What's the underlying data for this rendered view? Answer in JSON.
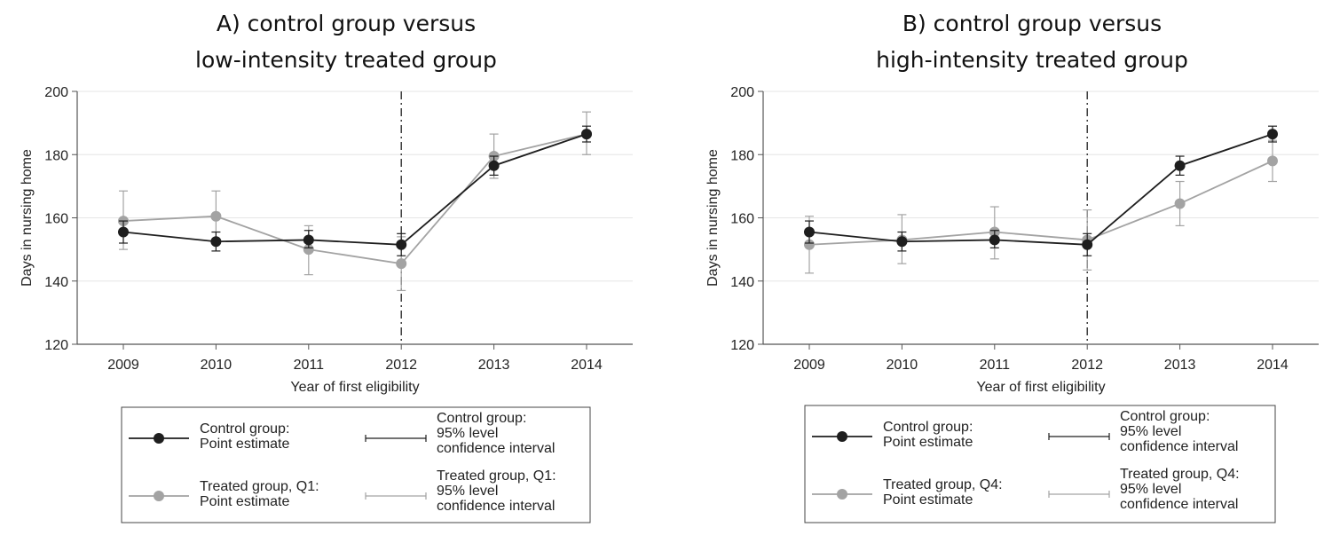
{
  "chart_data": [
    {
      "type": "line",
      "title_line1": "A) control group versus",
      "title_line2": "low-intensity treated group",
      "xlabel": "Year of first eligibility",
      "ylabel": "Days in nursing home",
      "categories": [
        "2009",
        "2010",
        "2011",
        "2012",
        "2013",
        "2014"
      ],
      "yticks": [
        "120",
        "140",
        "160",
        "180",
        "200"
      ],
      "ylim": [
        120,
        200
      ],
      "reference_line_at": "2012",
      "series": [
        {
          "name": "Control group",
          "color": "#1e1e1e",
          "values": [
            155.5,
            152.5,
            153.0,
            151.5,
            176.5,
            186.5
          ],
          "ci_low": [
            152.0,
            149.5,
            150.5,
            148.0,
            173.5,
            184.0
          ],
          "ci_high": [
            159.0,
            155.5,
            156.0,
            155.0,
            179.5,
            189.0
          ]
        },
        {
          "name": "Treated group, Q1",
          "color": "#a3a3a3",
          "values": [
            159.0,
            160.5,
            150.0,
            145.5,
            179.5,
            186.5
          ],
          "ci_low": [
            150.0,
            152.5,
            142.0,
            137.0,
            172.5,
            180.0
          ],
          "ci_high": [
            168.5,
            168.5,
            157.5,
            154.0,
            186.5,
            193.5
          ]
        }
      ],
      "legend": {
        "control_point": "Control group:\nPoint estimate",
        "control_ci": "Control group:\n95% level\nconfidence interval",
        "treated_point": "Treated group, Q1:\nPoint estimate",
        "treated_ci": "Treated group, Q1:\n95% level\nconfidence interval"
      }
    },
    {
      "type": "line",
      "title_line1": "B) control group versus",
      "title_line2": "high-intensity treated group",
      "xlabel": "Year of first eligibility",
      "ylabel": "Days in nursing home",
      "categories": [
        "2009",
        "2010",
        "2011",
        "2012",
        "2013",
        "2014"
      ],
      "yticks": [
        "120",
        "140",
        "160",
        "180",
        "200"
      ],
      "ylim": [
        120,
        200
      ],
      "reference_line_at": "2012",
      "series": [
        {
          "name": "Control group",
          "color": "#1e1e1e",
          "values": [
            155.5,
            152.5,
            153.0,
            151.5,
            176.5,
            186.5
          ],
          "ci_low": [
            152.0,
            149.5,
            150.5,
            148.0,
            173.5,
            184.0
          ],
          "ci_high": [
            159.0,
            155.5,
            156.0,
            155.0,
            179.5,
            189.0
          ]
        },
        {
          "name": "Treated group, Q4",
          "color": "#a3a3a3",
          "values": [
            151.5,
            153.0,
            155.5,
            153.0,
            164.5,
            178.0
          ],
          "ci_low": [
            142.5,
            145.5,
            147.0,
            143.5,
            157.5,
            171.5
          ],
          "ci_high": [
            160.5,
            161.0,
            163.5,
            162.5,
            171.5,
            184.5
          ]
        }
      ],
      "legend": {
        "control_point": "Control group:\nPoint estimate",
        "control_ci": "Control group:\n95% level\nconfidence interval",
        "treated_point": "Treated group, Q4:\nPoint estimate",
        "treated_ci": "Treated group, Q4:\n95% level\nconfidence interval"
      }
    }
  ]
}
